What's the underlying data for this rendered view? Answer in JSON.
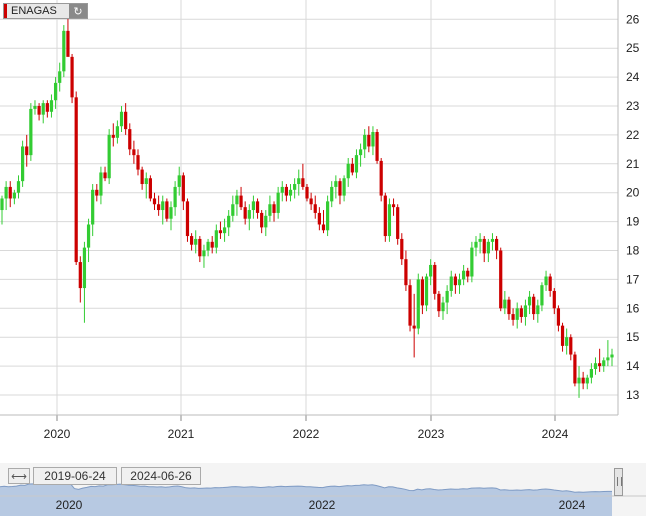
{
  "ticker": {
    "label": "ENAGAS",
    "refresh_icon": "refresh-icon",
    "refresh_glyph": "↻"
  },
  "navigator": {
    "start_date": "2019-06-24",
    "end_date": "2024-06-26",
    "handle_glyph": "⟷",
    "year_labels": [
      "2020",
      "2022",
      "2024"
    ]
  },
  "colors": {
    "up": "#33cc33",
    "down": "#cc0000",
    "grid": "#d9d9d9",
    "navigator_fill": "#b7c9e2",
    "navigator_line": "#7f9bc4"
  },
  "chart_data": {
    "type": "candlestick",
    "title": "",
    "xlabel": "",
    "ylabel": "",
    "x_ticks": [
      "2020",
      "2021",
      "2022",
      "2023",
      "2024"
    ],
    "y_ticks": [
      13,
      14,
      15,
      16,
      17,
      18,
      19,
      20,
      21,
      22,
      23,
      24,
      25,
      26
    ],
    "ylim": [
      12.6,
      26.3
    ],
    "xlim": [
      "2019-06-24",
      "2024-06-26"
    ],
    "y_axis_side": "right",
    "grid": true,
    "series": [
      {
        "values": [
          [
            19.4,
            19.9,
            18.9,
            19.8
          ],
          [
            19.8,
            20.4,
            19.4,
            20.2
          ],
          [
            20.2,
            20.4,
            19.5,
            19.8
          ],
          [
            19.8,
            20.1,
            19.6,
            20.0
          ],
          [
            20.0,
            20.6,
            19.8,
            20.4
          ],
          [
            20.4,
            21.8,
            20.2,
            21.6
          ],
          [
            21.6,
            22.0,
            20.9,
            21.3
          ],
          [
            21.3,
            23.1,
            21.1,
            22.9
          ],
          [
            22.9,
            23.2,
            22.7,
            23.0
          ],
          [
            23.0,
            23.1,
            22.5,
            22.7
          ],
          [
            22.7,
            23.2,
            22.4,
            23.1
          ],
          [
            23.1,
            23.2,
            22.6,
            22.8
          ],
          [
            22.8,
            23.4,
            22.6,
            23.2
          ],
          [
            23.2,
            24.0,
            22.9,
            23.8
          ],
          [
            23.8,
            24.5,
            23.5,
            24.2
          ],
          [
            24.2,
            25.8,
            24.0,
            25.6
          ],
          [
            25.6,
            26.3,
            25.1,
            24.7
          ],
          [
            24.7,
            24.8,
            23.1,
            23.3
          ],
          [
            23.3,
            23.5,
            17.5,
            17.6
          ],
          [
            17.6,
            17.8,
            16.2,
            16.7
          ],
          [
            16.7,
            18.3,
            15.5,
            18.1
          ],
          [
            18.1,
            19.1,
            17.6,
            18.9
          ],
          [
            18.9,
            20.3,
            18.5,
            20.1
          ],
          [
            20.1,
            20.3,
            19.7,
            19.9
          ],
          [
            19.9,
            20.9,
            19.6,
            20.7
          ],
          [
            20.7,
            20.9,
            20.4,
            20.5
          ],
          [
            20.5,
            22.2,
            20.3,
            22.0
          ],
          [
            22.0,
            22.4,
            21.6,
            21.9
          ],
          [
            21.9,
            22.5,
            21.7,
            22.3
          ],
          [
            22.3,
            23.0,
            22.1,
            22.8
          ],
          [
            22.8,
            23.1,
            22.0,
            22.2
          ],
          [
            22.2,
            22.4,
            21.3,
            21.5
          ],
          [
            21.5,
            21.8,
            21.0,
            21.3
          ],
          [
            21.3,
            21.5,
            20.6,
            20.8
          ],
          [
            20.8,
            20.9,
            20.1,
            20.3
          ],
          [
            20.3,
            20.7,
            19.8,
            20.5
          ],
          [
            20.5,
            20.6,
            19.7,
            19.8
          ],
          [
            19.8,
            20.0,
            19.4,
            19.6
          ],
          [
            19.6,
            19.9,
            19.2,
            19.4
          ],
          [
            19.4,
            19.9,
            18.9,
            19.7
          ],
          [
            19.7,
            19.8,
            19.0,
            19.1
          ],
          [
            19.1,
            19.7,
            18.7,
            19.5
          ],
          [
            19.5,
            20.4,
            19.2,
            20.2
          ],
          [
            20.2,
            20.9,
            19.9,
            20.6
          ],
          [
            20.6,
            20.7,
            19.4,
            19.7
          ],
          [
            19.7,
            19.8,
            18.3,
            18.5
          ],
          [
            18.5,
            18.6,
            18.0,
            18.2
          ],
          [
            18.2,
            18.7,
            17.9,
            18.4
          ],
          [
            18.4,
            18.5,
            17.6,
            17.8
          ],
          [
            17.8,
            18.2,
            17.4,
            18.0
          ],
          [
            18.0,
            18.4,
            17.8,
            18.3
          ],
          [
            18.3,
            18.5,
            17.9,
            18.1
          ],
          [
            18.1,
            18.9,
            17.9,
            18.7
          ],
          [
            18.7,
            19.0,
            18.4,
            18.6
          ],
          [
            18.6,
            19.1,
            18.3,
            18.8
          ],
          [
            18.8,
            19.4,
            18.5,
            19.2
          ],
          [
            19.2,
            19.9,
            19.0,
            19.6
          ],
          [
            19.6,
            20.1,
            19.2,
            19.9
          ],
          [
            19.9,
            20.2,
            19.4,
            19.5
          ],
          [
            19.5,
            19.7,
            18.9,
            19.1
          ],
          [
            19.1,
            19.6,
            18.7,
            19.4
          ],
          [
            19.4,
            19.9,
            19.1,
            19.7
          ],
          [
            19.7,
            19.8,
            19.1,
            19.3
          ],
          [
            19.3,
            19.4,
            18.6,
            18.8
          ],
          [
            18.8,
            19.4,
            18.5,
            19.2
          ],
          [
            19.2,
            19.9,
            19.0,
            19.6
          ],
          [
            19.6,
            19.7,
            19.0,
            19.3
          ],
          [
            19.3,
            20.2,
            19.1,
            20.0
          ],
          [
            20.0,
            20.4,
            19.7,
            20.2
          ],
          [
            20.2,
            20.3,
            19.7,
            19.9
          ],
          [
            19.9,
            20.3,
            19.7,
            20.1
          ],
          [
            20.1,
            20.5,
            19.8,
            20.3
          ],
          [
            20.3,
            20.8,
            19.9,
            20.5
          ],
          [
            20.5,
            21.0,
            20.1,
            20.2
          ],
          [
            20.2,
            20.3,
            19.7,
            19.8
          ],
          [
            19.8,
            20.0,
            19.4,
            19.6
          ],
          [
            19.6,
            19.9,
            19.1,
            19.3
          ],
          [
            19.3,
            19.5,
            18.7,
            18.9
          ],
          [
            18.9,
            19.4,
            18.6,
            18.7
          ],
          [
            18.7,
            19.9,
            18.5,
            19.7
          ],
          [
            19.7,
            20.4,
            19.5,
            20.2
          ],
          [
            20.2,
            20.6,
            19.8,
            20.4
          ],
          [
            20.4,
            20.5,
            19.6,
            19.9
          ],
          [
            19.9,
            20.6,
            19.7,
            20.5
          ],
          [
            20.5,
            21.2,
            20.2,
            21.0
          ],
          [
            21.0,
            21.2,
            20.6,
            20.7
          ],
          [
            20.7,
            21.5,
            20.5,
            21.3
          ],
          [
            21.3,
            21.7,
            20.9,
            21.5
          ],
          [
            21.5,
            22.2,
            21.2,
            22.0
          ],
          [
            22.0,
            22.3,
            21.4,
            21.6
          ],
          [
            21.6,
            22.3,
            21.3,
            22.1
          ],
          [
            22.1,
            22.2,
            21.0,
            21.1
          ],
          [
            21.1,
            21.2,
            19.7,
            19.9
          ],
          [
            19.9,
            20.0,
            18.3,
            18.5
          ],
          [
            18.5,
            19.8,
            18.3,
            19.6
          ],
          [
            19.6,
            19.8,
            19.2,
            19.5
          ],
          [
            19.5,
            19.6,
            18.2,
            18.4
          ],
          [
            18.4,
            18.6,
            17.5,
            17.7
          ],
          [
            17.7,
            18.0,
            16.6,
            16.8
          ],
          [
            16.8,
            17.0,
            15.2,
            15.4
          ],
          [
            15.4,
            16.5,
            14.3,
            15.3
          ],
          [
            15.3,
            17.2,
            15.1,
            17.0
          ],
          [
            17.0,
            17.1,
            15.8,
            16.1
          ],
          [
            16.1,
            17.2,
            15.9,
            17.1
          ],
          [
            17.1,
            17.7,
            16.8,
            17.5
          ],
          [
            17.5,
            17.6,
            16.3,
            16.5
          ],
          [
            16.5,
            16.6,
            15.7,
            15.9
          ],
          [
            15.9,
            16.4,
            15.6,
            16.2
          ],
          [
            16.2,
            16.8,
            15.8,
            16.6
          ],
          [
            16.6,
            17.3,
            16.4,
            17.1
          ],
          [
            17.1,
            17.2,
            16.5,
            16.8
          ],
          [
            16.8,
            17.2,
            16.5,
            17.0
          ],
          [
            17.0,
            17.5,
            16.8,
            17.3
          ],
          [
            17.3,
            17.4,
            16.9,
            17.1
          ],
          [
            17.1,
            18.3,
            16.9,
            18.1
          ],
          [
            18.1,
            18.5,
            17.8,
            18.3
          ],
          [
            18.3,
            18.6,
            17.9,
            18.4
          ],
          [
            18.4,
            18.5,
            17.6,
            17.9
          ],
          [
            17.9,
            18.4,
            17.6,
            18.3
          ],
          [
            18.3,
            18.6,
            18.0,
            18.4
          ],
          [
            18.4,
            18.5,
            17.7,
            18.0
          ],
          [
            18.0,
            18.1,
            15.9,
            16.0
          ],
          [
            16.0,
            16.6,
            15.8,
            16.3
          ],
          [
            16.3,
            16.4,
            15.6,
            15.8
          ],
          [
            15.8,
            16.0,
            15.4,
            15.6
          ],
          [
            15.6,
            16.2,
            15.3,
            16.0
          ],
          [
            16.0,
            16.1,
            15.5,
            15.7
          ],
          [
            15.7,
            16.3,
            15.4,
            16.1
          ],
          [
            16.1,
            16.6,
            15.8,
            16.4
          ],
          [
            16.4,
            16.5,
            15.6,
            15.8
          ],
          [
            15.8,
            16.3,
            15.5,
            16.1
          ],
          [
            16.1,
            16.9,
            15.9,
            16.8
          ],
          [
            16.8,
            17.3,
            16.6,
            17.1
          ],
          [
            17.1,
            17.2,
            16.4,
            16.6
          ],
          [
            16.6,
            16.7,
            15.8,
            16.0
          ],
          [
            16.0,
            16.1,
            15.2,
            15.4
          ],
          [
            15.4,
            15.5,
            14.5,
            14.7
          ],
          [
            14.7,
            15.3,
            14.4,
            15.0
          ],
          [
            15.0,
            15.1,
            14.2,
            14.4
          ],
          [
            14.4,
            14.5,
            13.3,
            13.4
          ],
          [
            13.4,
            14.0,
            12.9,
            13.6
          ],
          [
            13.6,
            13.8,
            13.2,
            13.4
          ],
          [
            13.4,
            13.7,
            13.2,
            13.6
          ],
          [
            13.6,
            14.1,
            13.4,
            13.9
          ],
          [
            13.9,
            14.3,
            13.7,
            14.1
          ],
          [
            14.1,
            14.6,
            13.8,
            14.0
          ],
          [
            14.0,
            14.3,
            13.8,
            14.2
          ],
          [
            14.2,
            14.9,
            14.0,
            14.3
          ],
          [
            14.3,
            14.6,
            14.0,
            14.4
          ]
        ]
      }
    ],
    "ohlc_order": [
      "open",
      "high",
      "low",
      "close"
    ]
  }
}
